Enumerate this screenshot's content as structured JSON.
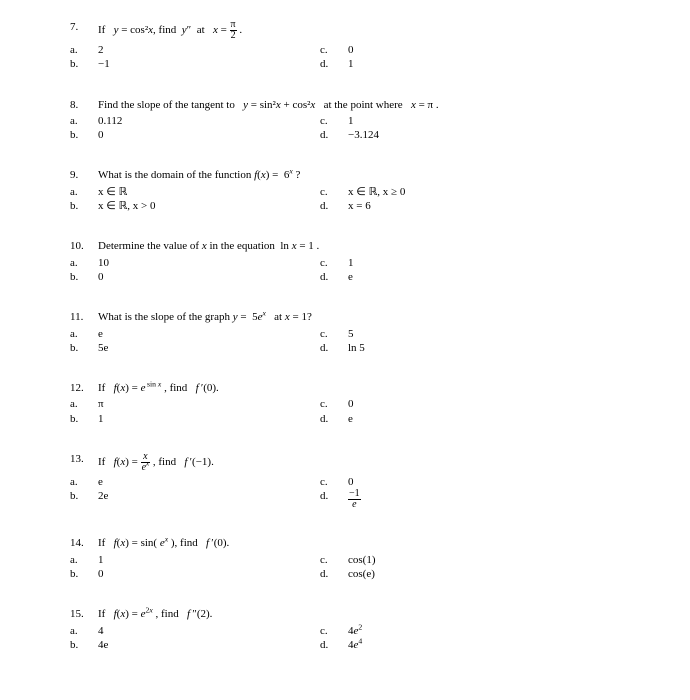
{
  "questions": [
    {
      "num": "7.",
      "prompt": "If   y = cos²x, find  y″  at   x = π⁄2 .",
      "a": "2",
      "b": "−1",
      "c": "0",
      "d": "1"
    },
    {
      "num": "8.",
      "prompt": "Find the slope of the tangent to   y = sin²x + cos²x   at the point where   x = π .",
      "a": "0.112",
      "b": "0",
      "c": "1",
      "d": "−3.124"
    },
    {
      "num": "9.",
      "prompt": "What is the domain of the function f(x) =  6ˣ ?",
      "a": "x ∈ ℝ",
      "b": "x ∈ ℝ, x > 0",
      "c": "x ∈ ℝ, x ≥ 0",
      "d": "x = 6"
    },
    {
      "num": "10.",
      "prompt": "Determine the value of x in the equation  ln x = 1 .",
      "a": "10",
      "b": "0",
      "c": "1",
      "d": "e"
    },
    {
      "num": "11.",
      "prompt": "What is the slope of the graph y =  5eˣ   at x = 1?",
      "a": "e",
      "b": "5e",
      "c": "5",
      "d": "ln 5"
    },
    {
      "num": "12.",
      "prompt": "If   f(x) = e ˢⁱⁿˣ , find   f ′(0).",
      "a": "π",
      "b": "1",
      "c": "0",
      "d": "e"
    },
    {
      "num": "13.",
      "prompt": "If   f(x) = x ⁄ eˣ , find   f ′(−1).",
      "a": "e",
      "b": "2e",
      "c": "0",
      "d": "−1 ⁄ e"
    },
    {
      "num": "14.",
      "prompt": "If   f(x) = sin( eˣ ), find   f ′(0).",
      "a": "1",
      "b": "0",
      "c": "cos(1)",
      "d": "cos(e)"
    },
    {
      "num": "15.",
      "prompt": "If   f(x) = e²ˣ , find   f ″(2).",
      "a": "4",
      "b": "4e",
      "c": "4e²",
      "d": "4e⁴"
    }
  ],
  "labels": {
    "a": "a.",
    "b": "b.",
    "c": "c.",
    "d": "d."
  }
}
